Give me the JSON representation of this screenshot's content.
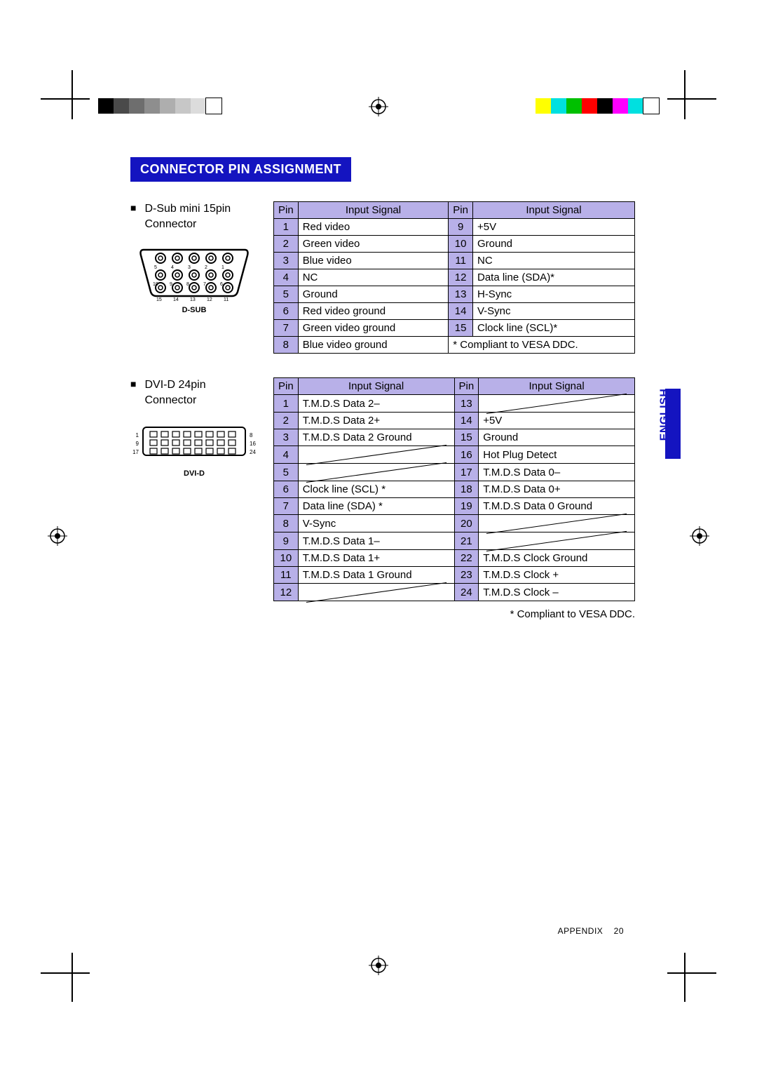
{
  "heading": "CONNECTOR PIN ASSIGNMENT",
  "side_tab_label": "ENGLISH",
  "footer": {
    "label": "APPENDIX",
    "page_no": "20"
  },
  "colorbar_left": [
    "#000000",
    "#4a4a4a",
    "#6e6e6e",
    "#8e8e8e",
    "#aeaeae",
    "#c7c7c7",
    "#dcdcdc",
    "#ffffff"
  ],
  "colorbar_right": [
    "#ffff00",
    "#00e0e0",
    "#00c000",
    "#ff0000",
    "#000000",
    "#ff00ff",
    "#00e0e0",
    "#ffffff"
  ],
  "dsub": {
    "label_line1": "D-Sub mini 15pin",
    "label_line2": "Connector",
    "caption": "D-SUB",
    "headers": {
      "pin": "Pin",
      "signal": "Input Signal"
    },
    "rows": [
      {
        "p1": "1",
        "s1": "Red video",
        "p2": "9",
        "s2": "+5V"
      },
      {
        "p1": "2",
        "s1": "Green video",
        "p2": "10",
        "s2": "Ground"
      },
      {
        "p1": "3",
        "s1": "Blue video",
        "p2": "11",
        "s2": "NC"
      },
      {
        "p1": "4",
        "s1": "NC",
        "p2": "12",
        "s2": "Data line (SDA)*"
      },
      {
        "p1": "5",
        "s1": "Ground",
        "p2": "13",
        "s2": "H-Sync"
      },
      {
        "p1": "6",
        "s1": "Red video ground",
        "p2": "14",
        "s2": "V-Sync"
      },
      {
        "p1": "7",
        "s1": "Green video ground",
        "p2": "15",
        "s2": "Clock line (SCL)*"
      },
      {
        "p1": "8",
        "s1": "Blue video ground",
        "note": "* Compliant to VESA DDC."
      }
    ],
    "pin_labels_top": [
      "5",
      "4",
      "3",
      "2",
      "1"
    ],
    "pin_labels_mid": [
      "10",
      "9",
      "8",
      "7",
      "6"
    ],
    "pin_labels_bottom": [
      "15",
      "14",
      "13",
      "12",
      "11"
    ]
  },
  "dvid": {
    "label_line1": "DVI-D 24pin",
    "label_line2": "Connector",
    "caption": "DVI-D",
    "headers": {
      "pin": "Pin",
      "signal": "Input Signal"
    },
    "rows": [
      {
        "p1": "1",
        "s1": "T.M.D.S Data 2–",
        "p2": "13",
        "s2_slash": true
      },
      {
        "p1": "2",
        "s1": "T.M.D.S Data 2+",
        "p2": "14",
        "s2": "+5V"
      },
      {
        "p1": "3",
        "s1": "T.M.D.S Data 2 Ground",
        "p2": "15",
        "s2": "Ground"
      },
      {
        "p1": "4",
        "s1_slash": true,
        "p2": "16",
        "s2": "Hot Plug Detect"
      },
      {
        "p1": "5",
        "s1_slash": true,
        "p2": "17",
        "s2": "T.M.D.S Data 0–"
      },
      {
        "p1": "6",
        "s1": "Clock line (SCL) *",
        "p2": "18",
        "s2": "T.M.D.S Data 0+"
      },
      {
        "p1": "7",
        "s1": "Data line (SDA) *",
        "p2": "19",
        "s2": "T.M.D.S Data 0 Ground"
      },
      {
        "p1": "8",
        "s1": "V-Sync",
        "p2": "20",
        "s2_slash": true
      },
      {
        "p1": "9",
        "s1": "T.M.D.S Data 1–",
        "p2": "21",
        "s2_slash": true
      },
      {
        "p1": "10",
        "s1": "T.M.D.S Data 1+",
        "p2": "22",
        "s2": "T.M.D.S Clock Ground"
      },
      {
        "p1": "11",
        "s1": "T.M.D.S Data 1 Ground",
        "p2": "23",
        "s2": "T.M.D.S Clock +"
      },
      {
        "p1": "12",
        "s1_slash": true,
        "p2": "24",
        "s2": "T.M.D.S Clock –"
      }
    ],
    "footnote": "* Compliant to VESA DDC.",
    "edge_labels": [
      "1",
      "8",
      "9",
      "16",
      "17",
      "24"
    ]
  }
}
